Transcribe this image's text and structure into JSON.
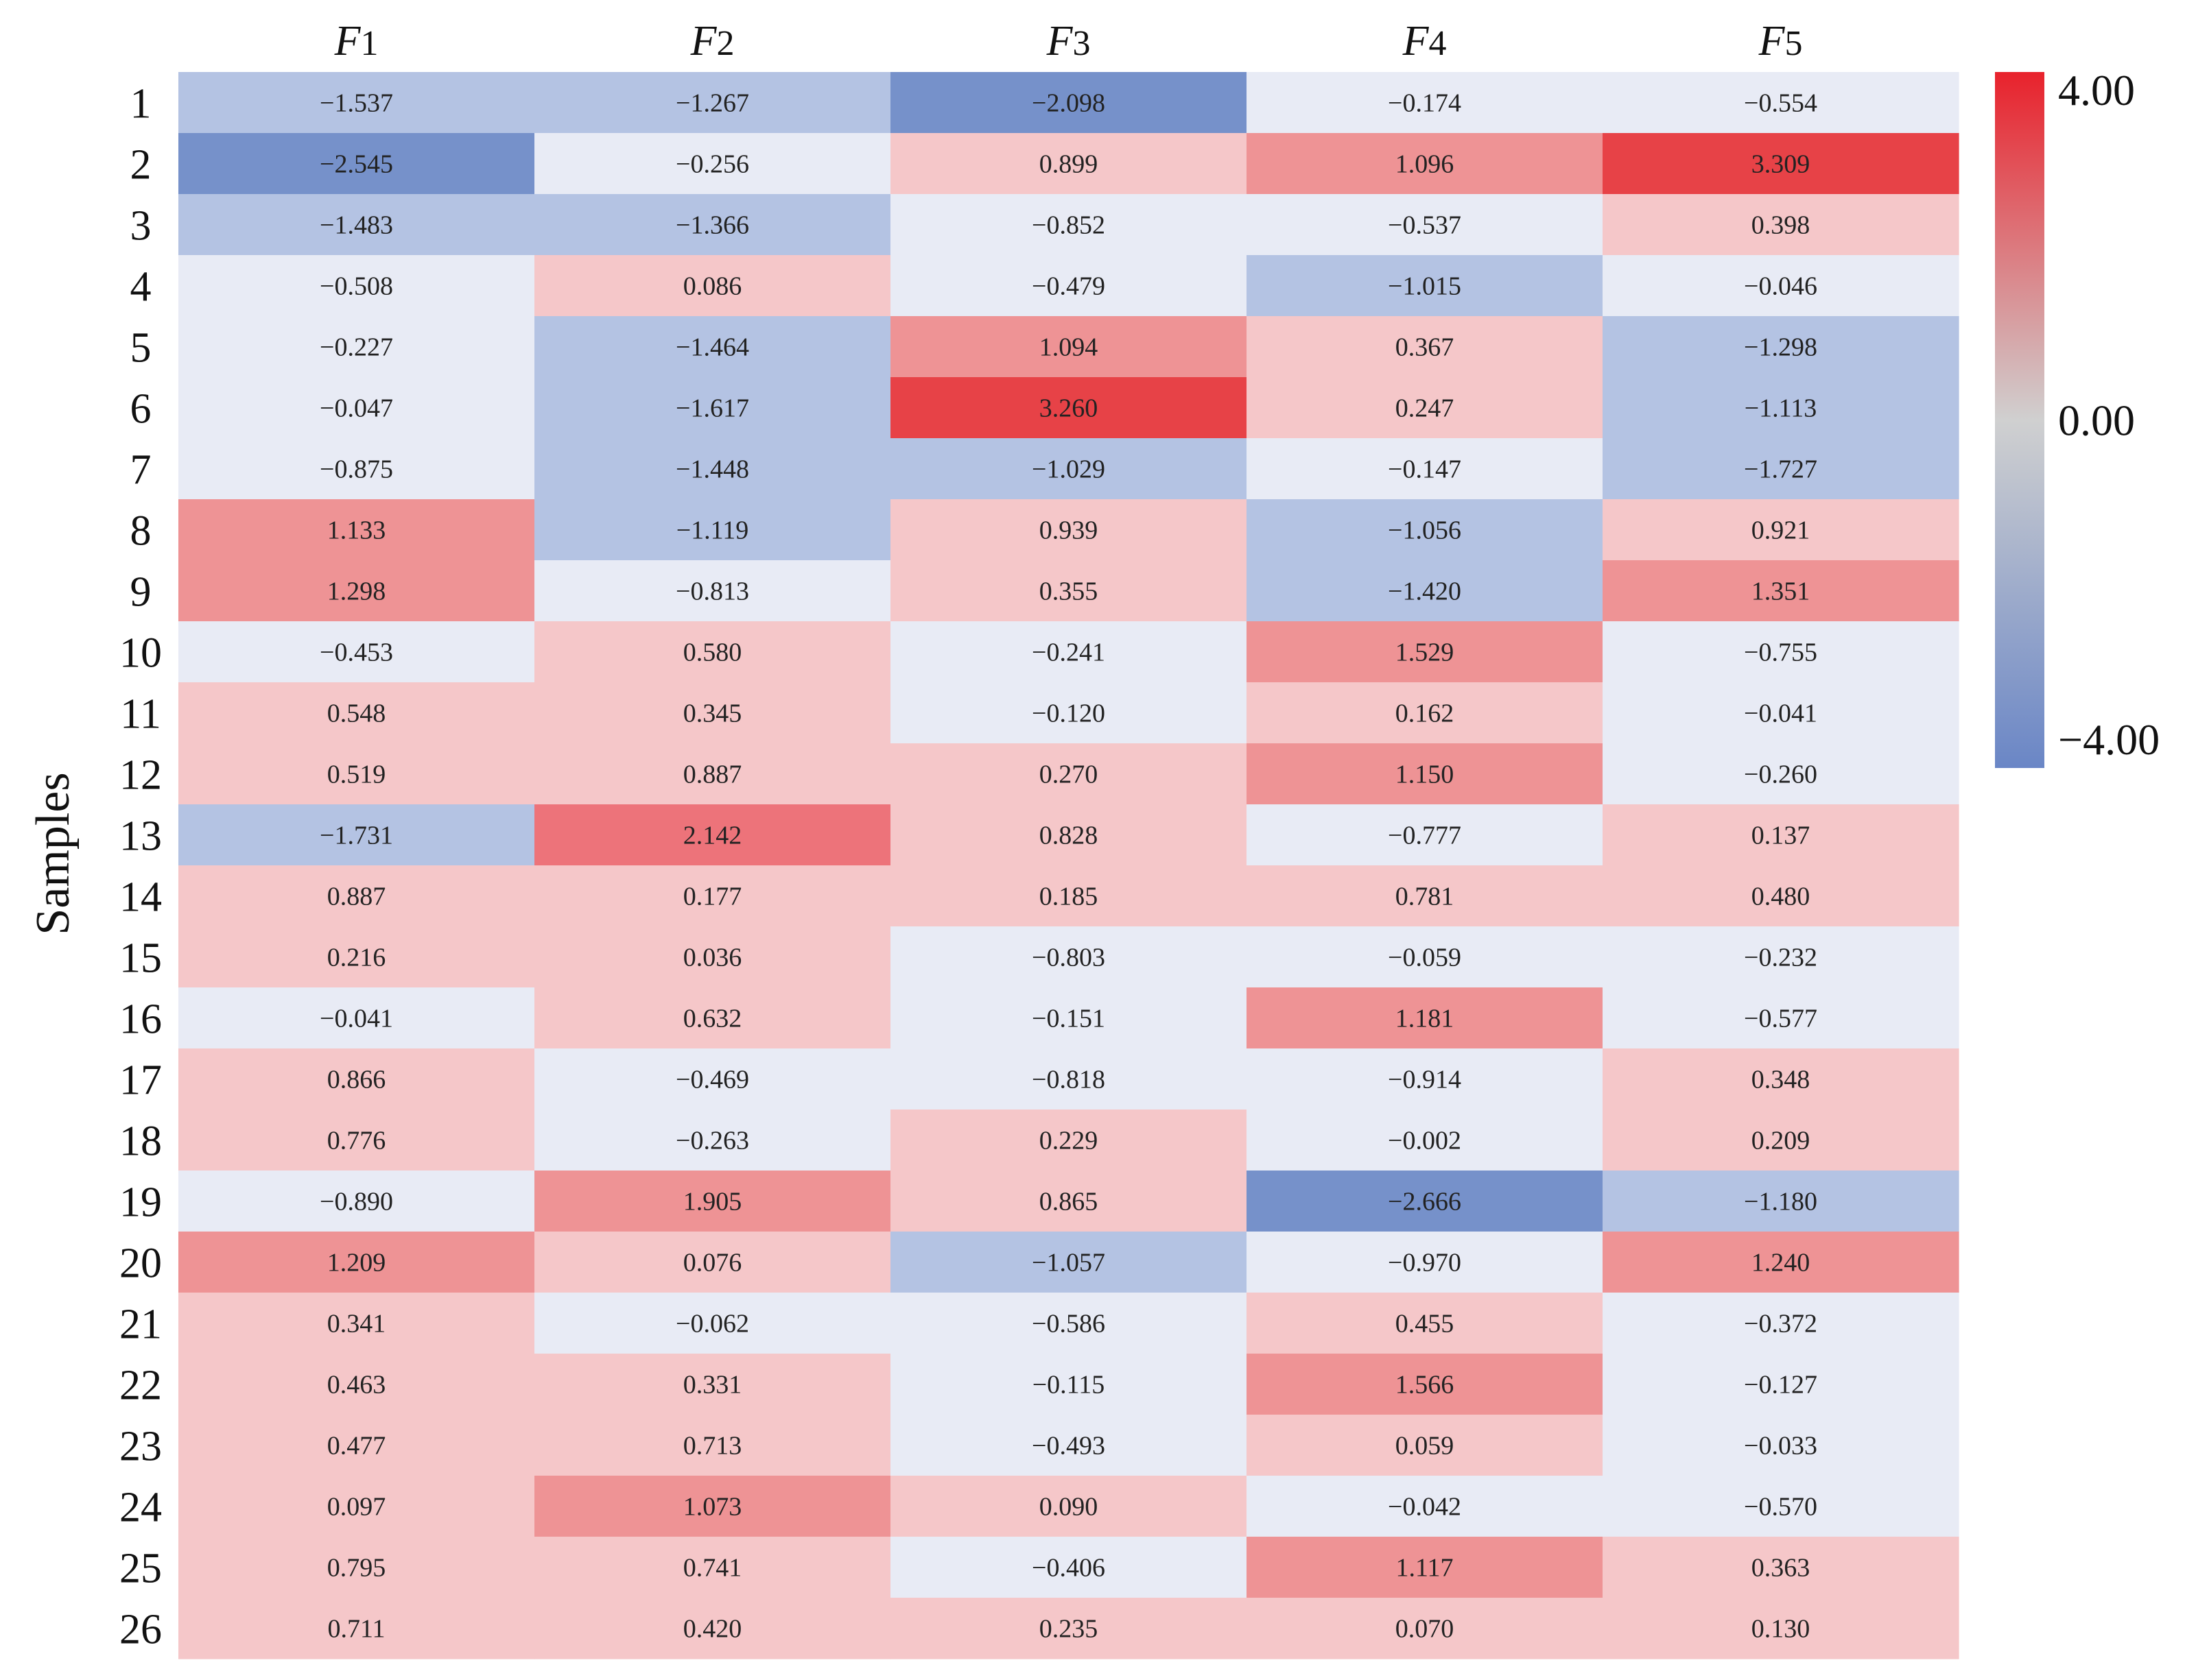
{
  "chart_data": {
    "type": "heatmap",
    "title": "",
    "ylabel": "Samples",
    "columns": [
      {
        "base": "F",
        "sub": "1"
      },
      {
        "base": "F",
        "sub": "2"
      },
      {
        "base": "F",
        "sub": "3"
      },
      {
        "base": "F",
        "sub": "4"
      },
      {
        "base": "F",
        "sub": "5"
      }
    ],
    "rows": [
      "1",
      "2",
      "3",
      "4",
      "5",
      "6",
      "7",
      "8",
      "9",
      "10",
      "11",
      "12",
      "13",
      "14",
      "15",
      "16",
      "17",
      "18",
      "19",
      "20",
      "21",
      "22",
      "23",
      "24",
      "25",
      "26"
    ],
    "values": [
      [
        -1.537,
        -1.267,
        -2.098,
        -0.174,
        -0.554
      ],
      [
        -2.545,
        -0.256,
        0.899,
        1.096,
        3.309
      ],
      [
        -1.483,
        -1.366,
        -0.852,
        -0.537,
        0.398
      ],
      [
        -0.508,
        0.086,
        -0.479,
        -1.015,
        -0.046
      ],
      [
        -0.227,
        -1.464,
        1.094,
        0.367,
        -1.298
      ],
      [
        -0.047,
        -1.617,
        3.26,
        0.247,
        -1.113
      ],
      [
        -0.875,
        -1.448,
        -1.029,
        -0.147,
        -1.727
      ],
      [
        1.133,
        -1.119,
        0.939,
        -1.056,
        0.921
      ],
      [
        1.298,
        -0.813,
        0.355,
        -1.42,
        1.351
      ],
      [
        -0.453,
        0.58,
        -0.241,
        1.529,
        -0.755
      ],
      [
        0.548,
        0.345,
        -0.12,
        0.162,
        -0.041
      ],
      [
        0.519,
        0.887,
        0.27,
        1.15,
        -0.26
      ],
      [
        -1.731,
        2.142,
        0.828,
        -0.777,
        0.137
      ],
      [
        0.887,
        0.177,
        0.185,
        0.781,
        0.48
      ],
      [
        0.216,
        0.036,
        -0.803,
        -0.059,
        -0.232
      ],
      [
        -0.041,
        0.632,
        -0.151,
        1.181,
        -0.577
      ],
      [
        0.866,
        -0.469,
        -0.818,
        -0.914,
        0.348
      ],
      [
        0.776,
        -0.263,
        0.229,
        -0.002,
        0.209
      ],
      [
        -0.89,
        1.905,
        0.865,
        -2.666,
        -1.18
      ],
      [
        1.209,
        0.076,
        -1.057,
        -0.97,
        1.24
      ],
      [
        0.341,
        -0.062,
        -0.586,
        0.455,
        -0.372
      ],
      [
        0.463,
        0.331,
        -0.115,
        1.566,
        -0.127
      ],
      [
        0.477,
        0.713,
        -0.493,
        0.059,
        -0.033
      ],
      [
        0.097,
        1.073,
        0.09,
        -0.042,
        -0.57
      ],
      [
        0.795,
        0.741,
        -0.406,
        1.117,
        0.363
      ],
      [
        0.711,
        0.42,
        0.235,
        0.07,
        0.13
      ]
    ],
    "value_range": [
      -4.0,
      4.0
    ],
    "colorbar": {
      "ticks": [
        "4.00",
        "0.00",
        "−4.00"
      ],
      "colors": {
        "high": "#e8222c",
        "mid": "#d0d0d0",
        "low": "#6a86c6"
      }
    },
    "bins": [
      {
        "min": -100,
        "max": -2.0,
        "color": "#7691ca"
      },
      {
        "min": -2.0,
        "max": -1.0,
        "color": "#b4c3e3"
      },
      {
        "min": -1.0,
        "max": 0.0,
        "color": "#e8ebf5"
      },
      {
        "min": 0.0,
        "max": 1.0,
        "color": "#f5c7c9"
      },
      {
        "min": 1.0,
        "max": 2.0,
        "color": "#ee9395"
      },
      {
        "min": 2.0,
        "max": 3.0,
        "color": "#ed737a"
      },
      {
        "min": 3.0,
        "max": 100,
        "color": "#e74247"
      }
    ]
  }
}
